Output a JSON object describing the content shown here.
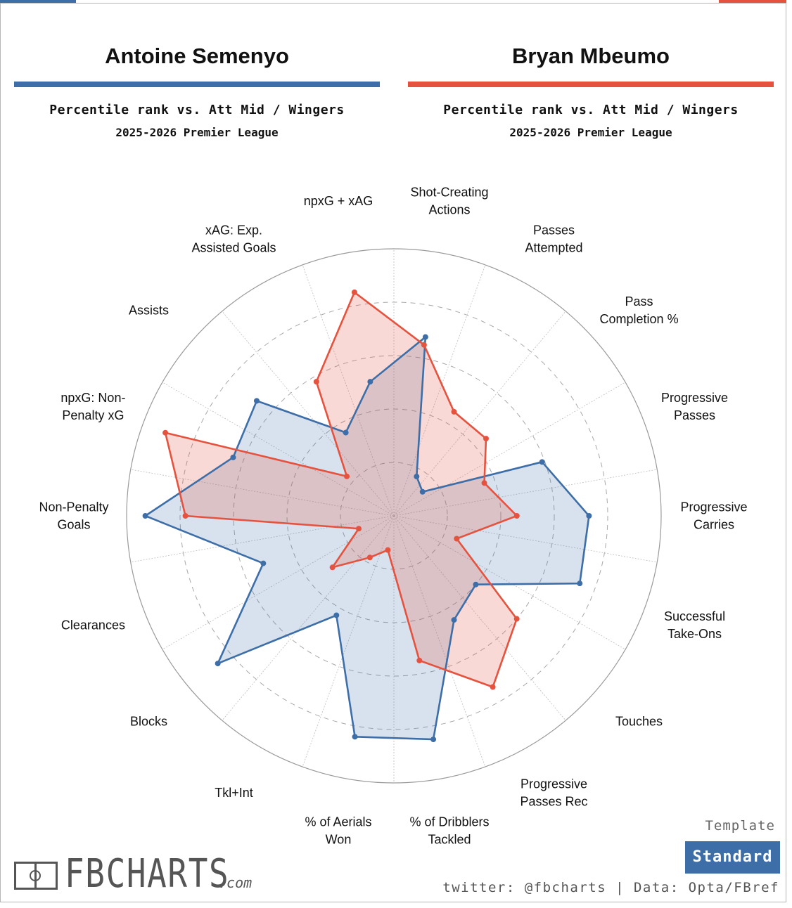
{
  "players": [
    {
      "name": "Antoine Semenyo",
      "color": "#3d6ea8",
      "subtitle": "Percentile rank vs. Att Mid / Wingers",
      "season": "2025-2026 Premier League"
    },
    {
      "name": "Bryan Mbeumo",
      "color": "#e5533f",
      "subtitle": "Percentile rank vs. Att Mid / Wingers",
      "season": "2025-2026 Premier League"
    }
  ],
  "chart_data": {
    "type": "radar",
    "range": [
      0,
      100
    ],
    "grid_rings": [
      20,
      40,
      60,
      80,
      100
    ],
    "axes": [
      "Shot-Creating\nActions",
      "Passes\nAttempted",
      "Pass\nCompletion %",
      "Progressive\nPasses",
      "Progressive\nCarries",
      "Successful\nTake-Ons",
      "Touches",
      "Progressive\nPasses Rec",
      "% of Dribblers\nTackled",
      "% of Aerials\nWon",
      "Tkl+Int",
      "Blocks",
      "Clearances",
      "Non-Penalty\nGoals",
      "npxG: Non-\nPenalty xG",
      "Assists",
      "xAG: Exp.\nAssisted Goals",
      "npxG + xAG"
    ],
    "series": [
      {
        "name": "Antoine Semenyo",
        "color": "#3d6ea8",
        "values": [
          68,
          17,
          14,
          59,
          73,
          74,
          40,
          45,
          85,
          84,
          43,
          86,
          52,
          93,
          64,
          67,
          36,
          51
        ]
      },
      {
        "name": "Bryan Mbeumo",
        "color": "#e5533f",
        "values": [
          65,
          45,
          45,
          36,
          46,
          25,
          60,
          74,
          55,
          13,
          18,
          30,
          14,
          78,
          91,
          23,
          58,
          85
        ]
      }
    ]
  },
  "branding": {
    "logo": "FBCHARTS",
    "logo_suffix": ".com",
    "template_label": "Template",
    "template_value": "Standard",
    "credit": "twitter: @fbcharts | Data: Opta/FBref"
  }
}
